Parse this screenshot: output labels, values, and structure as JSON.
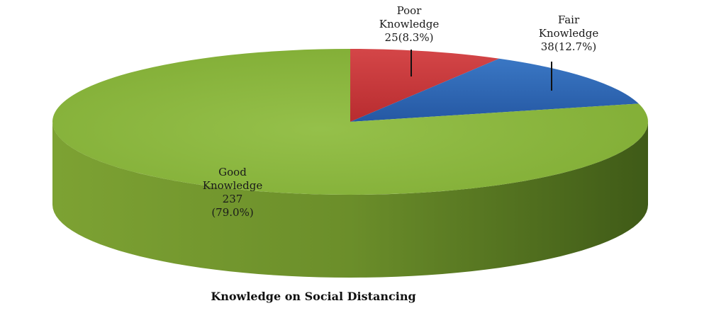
{
  "chart_data": {
    "type": "pie",
    "title": "Knowledge on Social Distancing",
    "slices": [
      {
        "name": "Poor Knowledge",
        "value": 25,
        "percent": 8.3,
        "label_lines": [
          "Poor",
          "Knowledge",
          "25(8.3%)"
        ],
        "color": "#c8393b"
      },
      {
        "name": "Fair Knowledge",
        "value": 38,
        "percent": 12.7,
        "label_lines": [
          "Fair",
          "Knowledge",
          "38(12.7%)"
        ],
        "color": "#2e68b5"
      },
      {
        "name": "Good Knowledge",
        "value": 237,
        "percent": 79.0,
        "label_lines": [
          "Good",
          "Knowledge",
          "237",
          "(79.0%)"
        ],
        "color": "#8db73e"
      }
    ],
    "style": "3d"
  }
}
